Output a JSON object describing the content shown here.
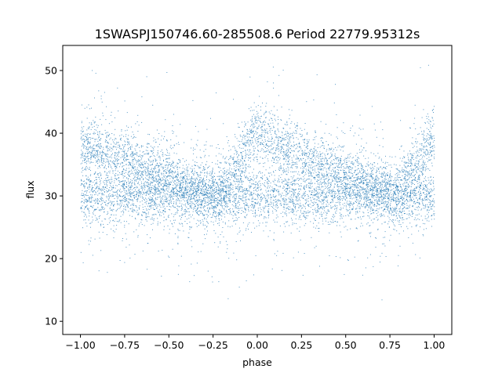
{
  "chart_data": {
    "type": "scatter",
    "title": "1SWASPJ150746.60-285508.6 Period 22779.95312s",
    "xlabel": "phase",
    "ylabel": "flux",
    "xlim": [
      -1.1,
      1.1
    ],
    "ylim": [
      7.9,
      54
    ],
    "xticks": [
      -1.0,
      -0.75,
      -0.5,
      -0.25,
      0.0,
      0.25,
      0.5,
      0.75,
      1.0
    ],
    "xtick_labels": [
      "−1.00",
      "−0.75",
      "−0.50",
      "−0.25",
      "0.00",
      "0.25",
      "0.50",
      "0.75",
      "1.00"
    ],
    "yticks": [
      10,
      20,
      30,
      40,
      50
    ],
    "ytick_labels": [
      "10",
      "20",
      "30",
      "40",
      "50"
    ],
    "grid": false,
    "marker_color": "#1f77b4",
    "series": [
      {
        "component": "baseline",
        "x": [
          -1.0,
          1.0
        ],
        "y": [
          30,
          30
        ]
      },
      {
        "component": "sawtooth",
        "x": [
          -1.0,
          -0.22,
          -0.02,
          0.78,
          1.0
        ],
        "y": [
          38.5,
          30,
          40,
          30,
          40
        ]
      }
    ],
    "flux_scatter_range": [
      10,
      52
    ]
  }
}
